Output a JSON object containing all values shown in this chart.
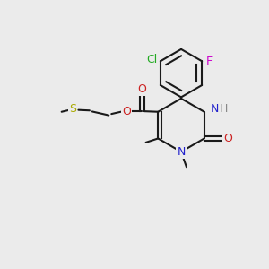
{
  "background_color": "#ebebeb",
  "figsize": [
    3.0,
    3.0
  ],
  "dpi": 100,
  "lw": 1.5,
  "bond_color": "#1a1a1a",
  "ring_colors": {
    "benzene": "#1a1a1a",
    "pyrimidine": "#1a1a1a"
  },
  "atom_colors": {
    "Cl": "#22aa22",
    "F": "#cc00cc",
    "N": "#2222cc",
    "H": "#888888",
    "O": "#cc2222",
    "S": "#aaaa00"
  }
}
